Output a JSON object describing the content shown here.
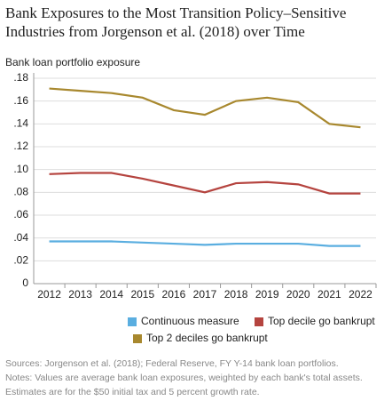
{
  "chart_data": {
    "type": "line",
    "title": [
      "Bank Exposures to the Most Transition Policy–Sensitive",
      "Industries from Jorgenson et al. (2018) over Time"
    ],
    "y_label": "Bank loan portfolio exposure",
    "categories": [
      "2012",
      "2013",
      "2014",
      "2015",
      "2016",
      "2017",
      "2018",
      "2019",
      "2020",
      "2021",
      "2022"
    ],
    "series": [
      {
        "name": "Continuous measure",
        "color": "#5aaee0",
        "values": [
          0.037,
          0.037,
          0.037,
          0.036,
          0.035,
          0.034,
          0.035,
          0.035,
          0.035,
          0.033,
          0.033
        ]
      },
      {
        "name": "Top decile go bankrupt",
        "color": "#b5443f",
        "values": [
          0.096,
          0.097,
          0.097,
          0.092,
          0.086,
          0.08,
          0.088,
          0.089,
          0.087,
          0.079,
          0.079
        ]
      },
      {
        "name": "Top 2 deciles go bankrupt",
        "color": "#a8882e",
        "values": [
          0.171,
          0.169,
          0.167,
          0.163,
          0.152,
          0.148,
          0.16,
          0.163,
          0.159,
          0.14,
          0.137
        ]
      }
    ],
    "ylim": [
      0,
      0.18
    ],
    "yticks": [
      0,
      {
        "value": 0.02,
        "label": ".02"
      },
      {
        "value": 0.04,
        "label": ".04"
      },
      {
        "value": 0.06,
        "label": ".06"
      },
      {
        "value": 0.08,
        "label": ".08"
      },
      {
        "value": 0.1,
        "label": ".10"
      },
      {
        "value": 0.12,
        "label": ".12"
      },
      {
        "value": 0.14,
        "label": ".14"
      },
      {
        "value": 0.16,
        "label": ".16"
      },
      {
        "value": 0.18,
        "label": ".18"
      }
    ],
    "grid": true,
    "notes": [
      "Sources: Jorgenson et al. (2018); Federal Reserve, FY Y-14 bank loan portfolios.",
      "Notes: Values are average bank loan exposures, weighted by each bank's total assets.",
      "Estimates are for the $50 initial tax and 5 percent growth rate."
    ]
  }
}
